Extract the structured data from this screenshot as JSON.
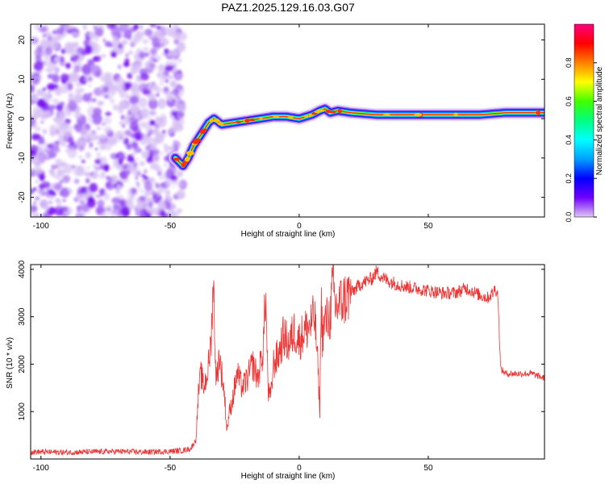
{
  "title": "PAZ1.2025.129.16.03.G07",
  "chart_data": [
    {
      "type": "heatmap",
      "xlabel": "Height of straight line (km)",
      "ylabel": "Frequency (Hz)",
      "xlim": [
        -104,
        95
      ],
      "ylim": [
        -25,
        24
      ],
      "xticks": [
        -100,
        -50,
        0,
        50
      ],
      "yticks": [
        -20,
        -10,
        0,
        10,
        20
      ],
      "colorbar": {
        "label": "Normalized spectral amplitude",
        "range": [
          0,
          1
        ],
        "ticks": [
          0.0,
          0.2,
          0.4,
          0.6,
          0.8
        ],
        "colormap": [
          "#e0c8f0",
          "#7000ff",
          "#0000ff",
          "#00a0ff",
          "#00ffff",
          "#00ff80",
          "#40ff00",
          "#ffff00",
          "#ff8000",
          "#ff0000",
          "#ff0080"
        ]
      },
      "noise_region_x": [
        -104,
        -45
      ],
      "ridge": {
        "x": [
          -48,
          -45,
          -43,
          -41,
          -39,
          -37,
          -35,
          -33,
          -30,
          -25,
          -20,
          -15,
          -10,
          -5,
          0,
          5,
          8,
          10,
          12,
          15,
          20,
          30,
          40,
          50,
          60,
          70,
          80,
          90,
          95
        ],
        "freq_hz": [
          -10,
          -12,
          -10,
          -7,
          -5,
          -3,
          -1,
          0,
          -1.5,
          -1,
          -0.5,
          0,
          0.5,
          0.5,
          0,
          1,
          2,
          2.5,
          1.5,
          2,
          1.5,
          1,
          1,
          1,
          1,
          1,
          1.5,
          1.5,
          1.5
        ]
      }
    },
    {
      "type": "line",
      "xlabel": "Height of straight line (km)",
      "ylabel": "SNR (10 * v/v)",
      "xlim": [
        -104,
        95
      ],
      "ylim": [
        0,
        4100
      ],
      "xticks": [
        -100,
        -50,
        0,
        50
      ],
      "yticks": [
        1000,
        2000,
        3000,
        4000
      ],
      "series": [
        {
          "color": "#ee3333",
          "x": [
            -104,
            -90,
            -80,
            -70,
            -60,
            -50,
            -45,
            -42,
            -40,
            -39,
            -38,
            -37,
            -36,
            -35,
            -34,
            -33.5,
            -33,
            -32.5,
            -32,
            -31,
            -30,
            -29,
            -28,
            -27,
            -26,
            -25,
            -24,
            -22,
            -20,
            -18,
            -16,
            -14,
            -13,
            -12,
            -11,
            -10,
            -8,
            -6,
            -4,
            -2,
            0,
            2,
            4,
            6,
            7,
            8,
            8.5,
            9,
            10,
            12,
            13,
            14,
            16,
            20,
            24,
            28,
            30,
            33,
            35,
            40,
            45,
            50,
            55,
            60,
            65,
            70,
            73,
            75,
            76,
            77,
            78,
            80,
            85,
            90,
            95
          ],
          "y": [
            150,
            140,
            150,
            160,
            145,
            160,
            180,
            220,
            400,
            1400,
            1800,
            1500,
            1700,
            2000,
            2600,
            3600,
            3400,
            2200,
            1600,
            2200,
            1800,
            1400,
            600,
            1000,
            1200,
            1500,
            1800,
            1500,
            1700,
            2000,
            1700,
            2300,
            3500,
            1400,
            1300,
            2000,
            2200,
            2600,
            2400,
            2700,
            2500,
            2700,
            2800,
            3000,
            2200,
            1000,
            3400,
            2600,
            2900,
            3000,
            3700,
            3200,
            3300,
            3500,
            3700,
            3800,
            3950,
            3800,
            3750,
            3650,
            3600,
            3550,
            3500,
            3500,
            3600,
            3450,
            3400,
            3500,
            3600,
            3450,
            1900,
            1800,
            1800,
            1800,
            1700
          ]
        }
      ]
    }
  ]
}
